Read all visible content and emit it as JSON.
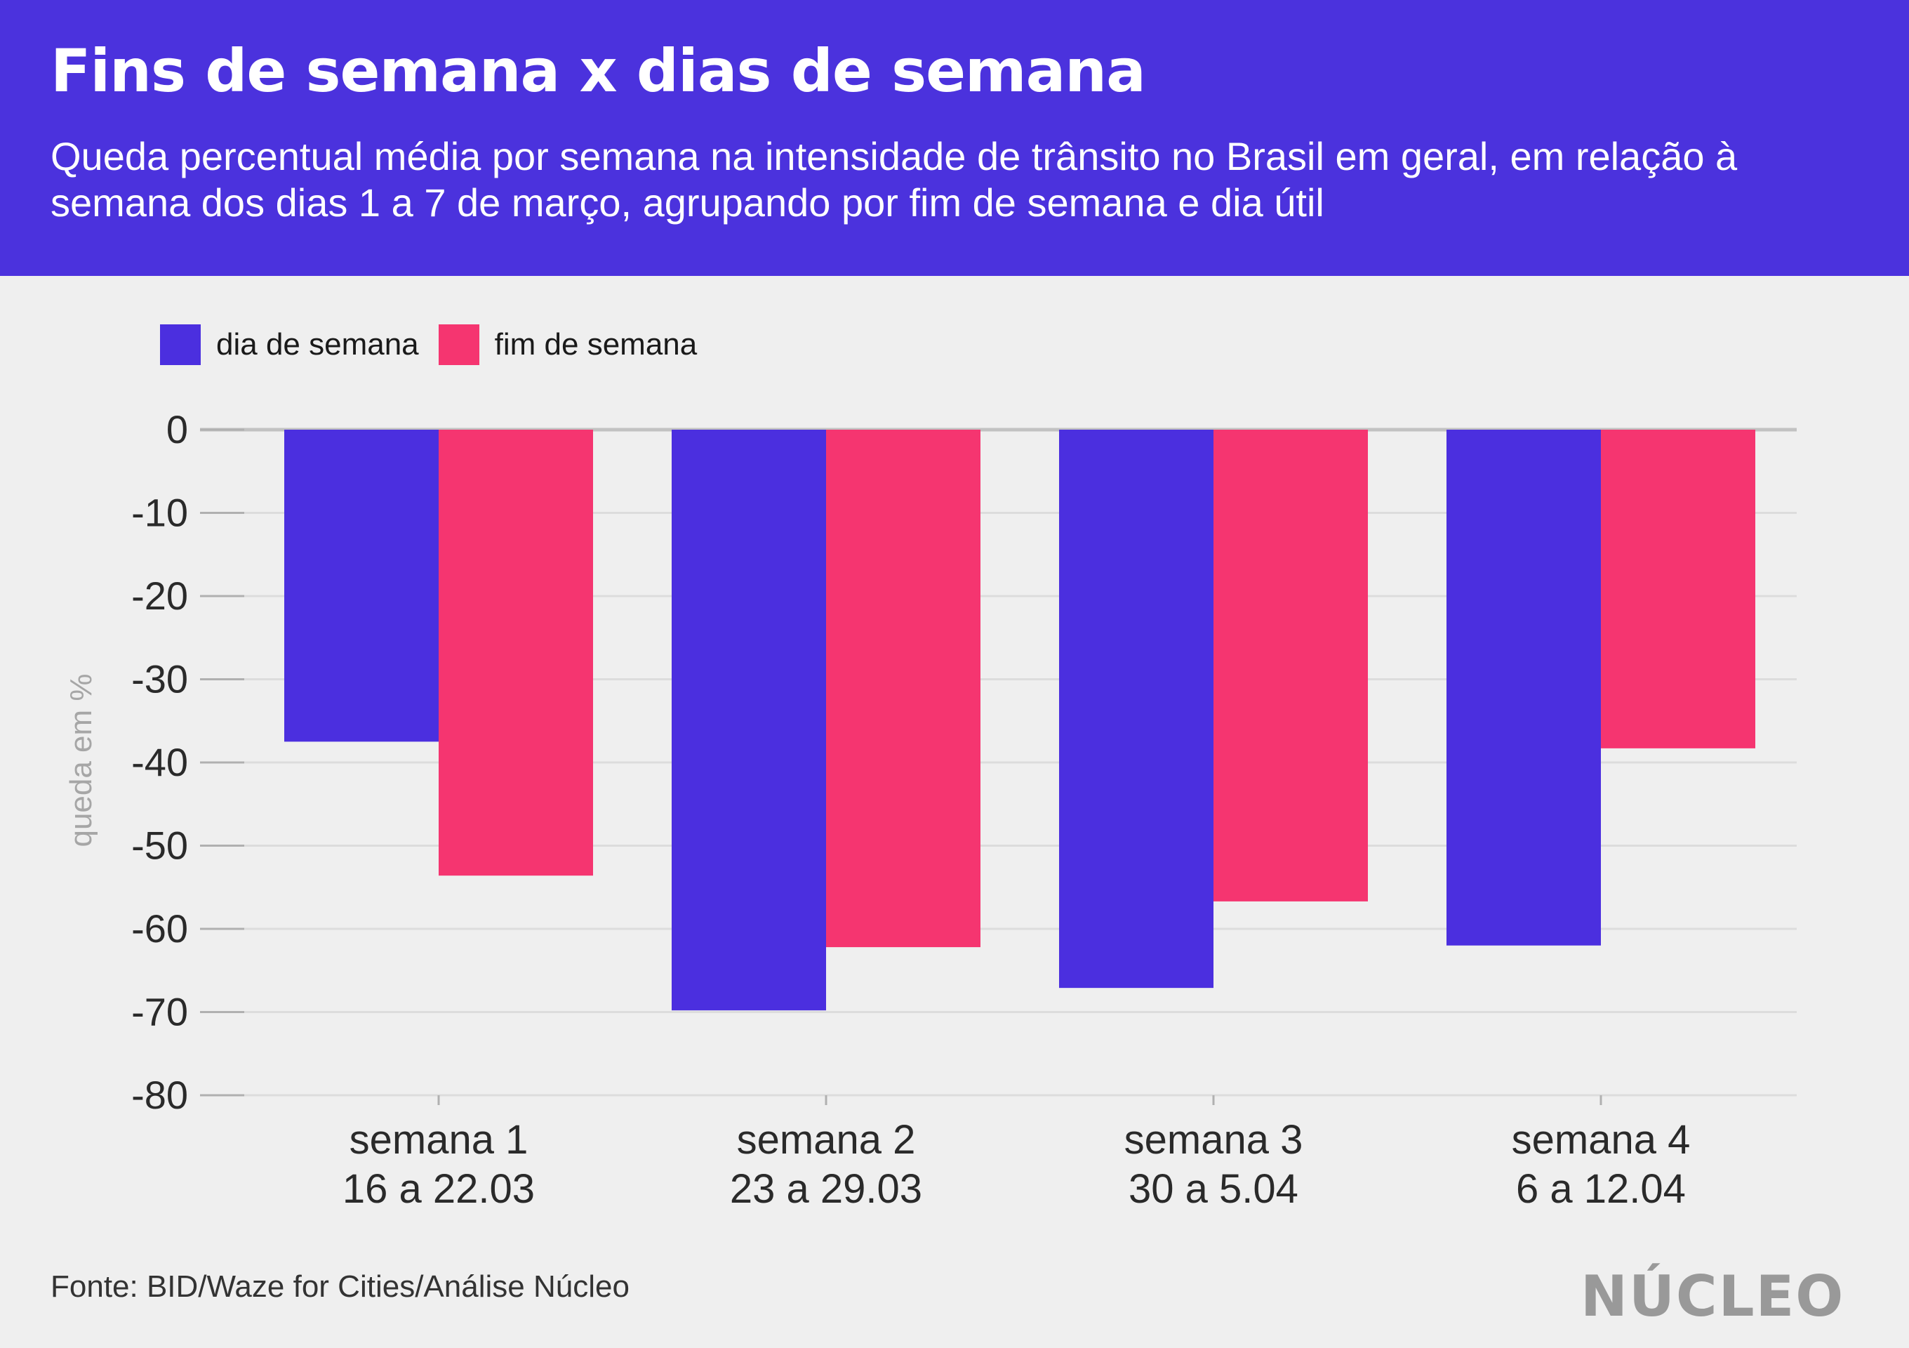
{
  "header": {
    "title": "Fins de semana x dias de semana",
    "subtitle": "Queda percentual média por semana na intensidade de trânsito no Brasil em geral, em relação à semana dos dias 1 a 7 de março, agrupando por fim de semana e dia útil"
  },
  "colors": {
    "header_bg": "#4b32dd",
    "dia_de_semana": "#4b2fdf",
    "fim_de_semana": "#f53570",
    "background": "#efefef"
  },
  "chart_data": {
    "type": "bar",
    "ylabel": "queda em %",
    "ylim": [
      -80,
      0
    ],
    "yticks": [
      0,
      -10,
      -20,
      -30,
      -40,
      -50,
      -60,
      -70,
      -80
    ],
    "grid": true,
    "legend_position": "top-left",
    "categories": [
      {
        "line1": "semana 1",
        "line2": "16 a 22.03"
      },
      {
        "line1": "semana 2",
        "line2": "23 a 29.03"
      },
      {
        "line1": "semana 3",
        "line2": "30 a 5.04"
      },
      {
        "line1": "semana 4",
        "line2": "6 a 12.04"
      }
    ],
    "series": [
      {
        "name": "dia de semana",
        "color": "#4b2fdf",
        "values": [
          -37.5,
          -69.8,
          -67.1,
          -62.0
        ]
      },
      {
        "name": "fim de semana",
        "color": "#f53570",
        "values": [
          -53.6,
          -62.2,
          -56.7,
          -38.3
        ]
      }
    ]
  },
  "footer": {
    "source": "Fonte: BID/Waze for Cities/Análise Núcleo",
    "logo": "NÚCLEO"
  }
}
